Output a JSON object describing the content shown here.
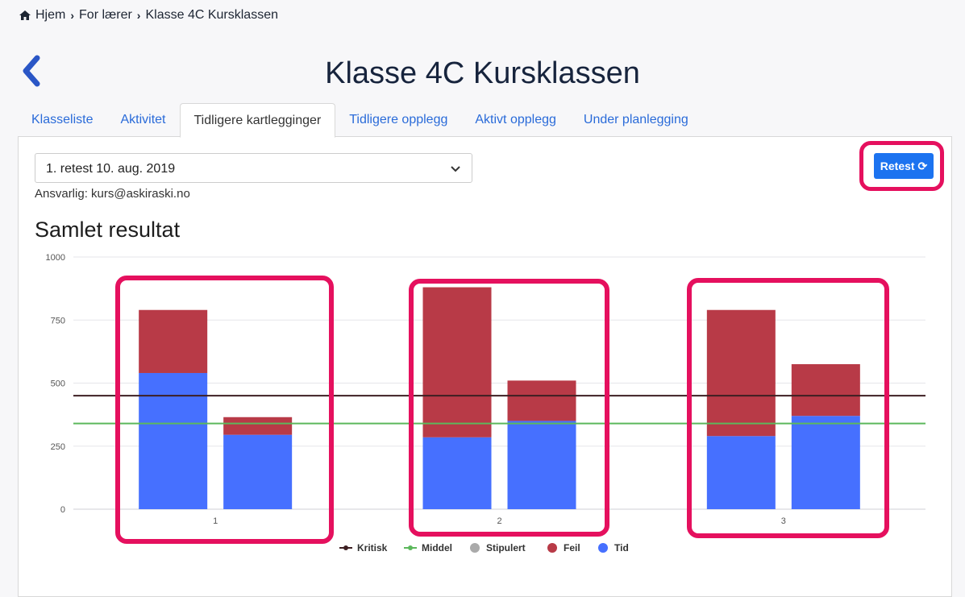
{
  "breadcrumb": [
    "Hjem",
    "For lærer",
    "Klasse 4C Kursklassen"
  ],
  "page_title": "Klasse 4C Kursklassen",
  "tabs": [
    "Klasseliste",
    "Aktivitet",
    "Tidligere kartlegginger",
    "Tidligere opplegg",
    "Aktivt opplegg",
    "Under planlegging"
  ],
  "active_tab": "Tidligere kartlegginger",
  "select_value": "1. retest 10. aug. 2019",
  "responsible": "Ansvarlig: kurs@askiraski.no",
  "retest_label": "Retest",
  "section_title": "Samlet resultat",
  "chart_data": {
    "type": "bar",
    "stacked": true,
    "categories": [
      "1",
      "2",
      "3"
    ],
    "ylim": [
      0,
      1000
    ],
    "yticks": [
      "0",
      "250",
      "500",
      "750",
      "1000"
    ],
    "bars": [
      {
        "category": "1",
        "tid": 540,
        "feil": 250
      },
      {
        "category": "1",
        "tid": 295,
        "feil": 70
      },
      {
        "category": "2",
        "tid": 285,
        "feil": 595
      },
      {
        "category": "2",
        "tid": 350,
        "feil": 160
      },
      {
        "category": "3",
        "tid": 290,
        "feil": 500
      },
      {
        "category": "3",
        "tid": 370,
        "feil": 205
      }
    ],
    "lines": [
      {
        "name": "Kritisk",
        "value": 450,
        "color": "#3d1f22"
      },
      {
        "name": "Middel",
        "value": 340,
        "color": "#5cb85c"
      }
    ],
    "legend": [
      {
        "name": "Kritisk",
        "color": "#3d1f22",
        "marker": "line"
      },
      {
        "name": "Middel",
        "color": "#5cb85c",
        "marker": "line"
      },
      {
        "name": "Stipulert",
        "color": "#aaaaaa",
        "marker": "dot"
      },
      {
        "name": "Feil",
        "color": "#b83a47",
        "marker": "dot"
      },
      {
        "name": "Tid",
        "color": "#4670ff",
        "marker": "dot"
      }
    ],
    "legend_position": "bottom",
    "grid": true
  }
}
